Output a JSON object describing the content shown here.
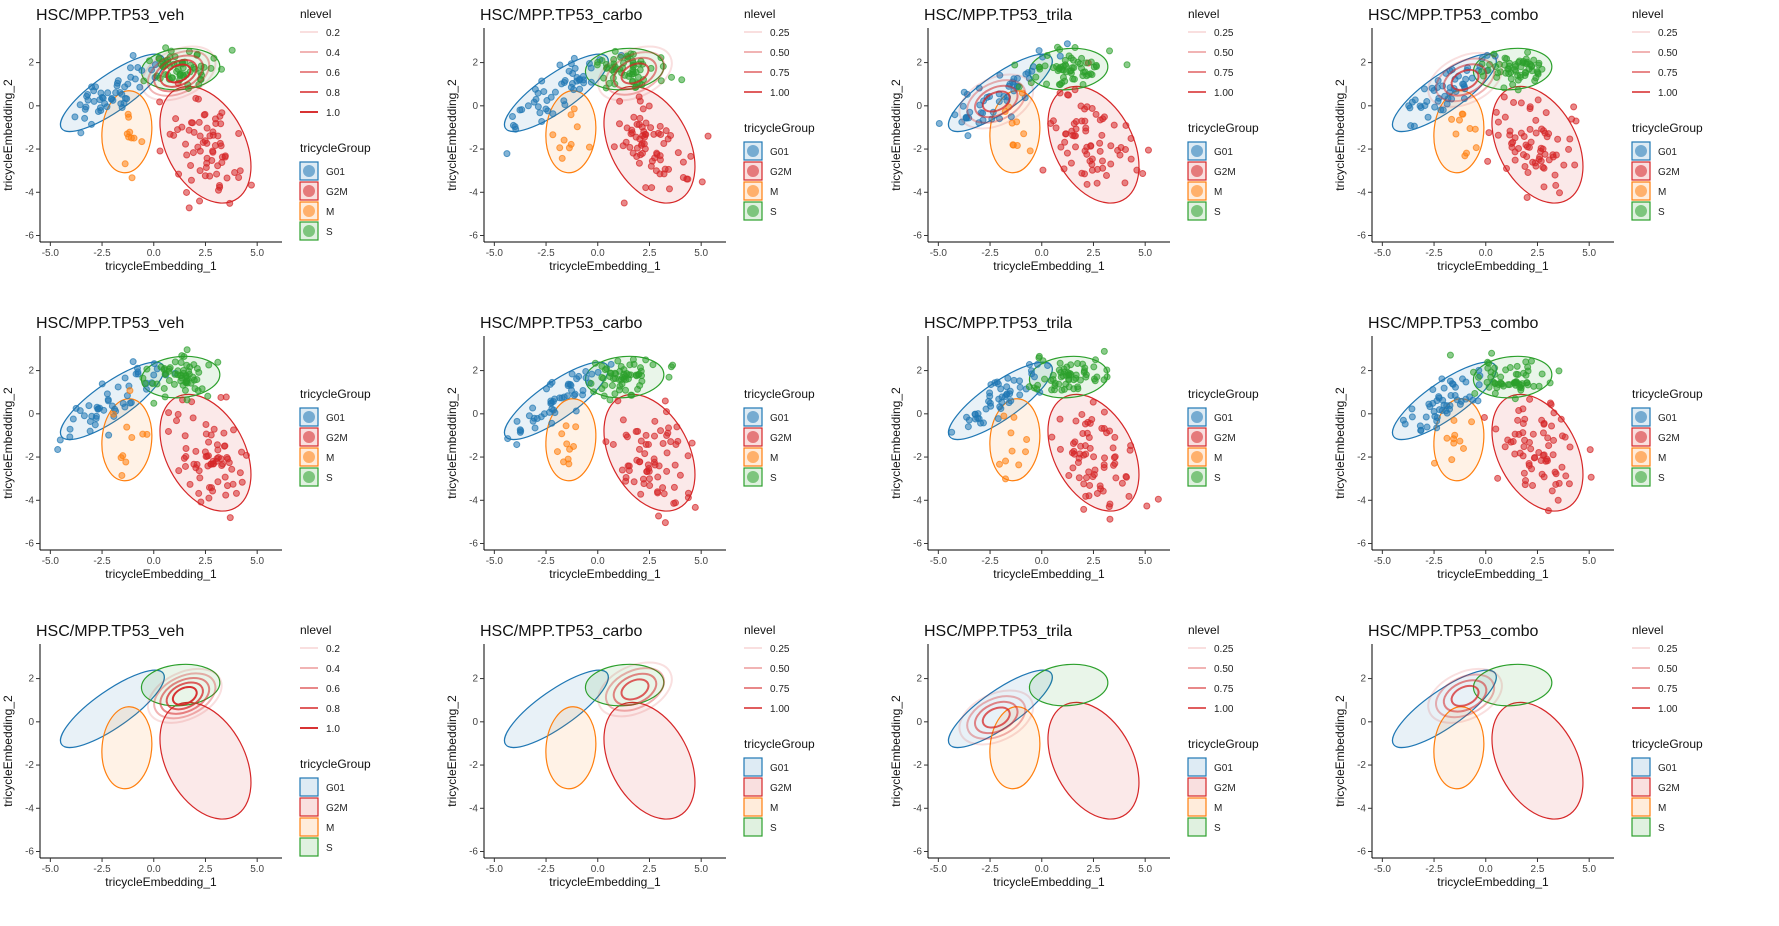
{
  "colors": {
    "G01": "#1f77b4",
    "G2M": "#d62728",
    "M": "#ff7f0e",
    "S": "#2ca02c",
    "density": "#d62728"
  },
  "chart_data": [
    {
      "title": "HSC/MPP.TP53_veh",
      "type": "scatter",
      "xlabel": "tricycleEmbedding_1",
      "ylabel": "tricycleEmbedding_2",
      "xlim": [
        -5.5,
        6.2
      ],
      "ylim": [
        -6.3,
        3.6
      ],
      "xticks": [
        "-5.0",
        "-2.5",
        "0.0",
        "2.5",
        "5.0"
      ],
      "yticks": [
        "-6",
        "-4",
        "-2",
        "0",
        "2"
      ],
      "points": true,
      "ellipses": true,
      "density": true,
      "density_center": [
        1.2,
        1.5
      ],
      "nlevel_labels": [
        "0.2",
        "0.4",
        "0.6",
        "0.8",
        "1.0"
      ],
      "legend_title_group": "tricycleGroup",
      "legend_groups": [
        "G01",
        "G2M",
        "M",
        "S"
      ],
      "legend_title_level": "nlevel"
    },
    {
      "title": "HSC/MPP.TP53_carbo",
      "type": "scatter",
      "xlabel": "tricycleEmbedding_1",
      "ylabel": "tricycleEmbedding_2",
      "xlim": [
        -5.5,
        6.2
      ],
      "ylim": [
        -6.3,
        3.6
      ],
      "xticks": [
        "-5.0",
        "-2.5",
        "0.0",
        "2.5",
        "5.0"
      ],
      "yticks": [
        "-6",
        "-4",
        "-2",
        "0",
        "2"
      ],
      "points": true,
      "ellipses": true,
      "density": true,
      "density_center": [
        1.8,
        1.5
      ],
      "nlevel_labels": [
        "0.25",
        "0.50",
        "0.75",
        "1.00"
      ],
      "legend_title_group": "tricycleGroup",
      "legend_groups": [
        "G01",
        "G2M",
        "M",
        "S"
      ],
      "legend_title_level": "nlevel"
    },
    {
      "title": "HSC/MPP.TP53_trila",
      "type": "scatter",
      "xlabel": "tricycleEmbedding_1",
      "ylabel": "tricycleEmbedding_2",
      "xlim": [
        -5.5,
        6.2
      ],
      "ylim": [
        -6.3,
        3.6
      ],
      "xticks": [
        "-5.0",
        "-2.5",
        "0.0",
        "2.5",
        "5.0"
      ],
      "yticks": [
        "-6",
        "-4",
        "-2",
        "0",
        "2"
      ],
      "points": true,
      "ellipses": true,
      "density": true,
      "density_center": [
        -2.2,
        0.2
      ],
      "nlevel_labels": [
        "0.25",
        "0.50",
        "0.75",
        "1.00"
      ],
      "legend_title_group": "tricycleGroup",
      "legend_groups": [
        "G01",
        "G2M",
        "M",
        "S"
      ],
      "legend_title_level": "nlevel"
    },
    {
      "title": "HSC/MPP.TP53_combo",
      "type": "scatter",
      "xlabel": "tricycleEmbedding_1",
      "ylabel": "tricycleEmbedding_2",
      "xlim": [
        -5.5,
        6.2
      ],
      "ylim": [
        -6.3,
        3.6
      ],
      "xticks": [
        "-5.0",
        "-2.5",
        "0.0",
        "2.5",
        "5.0"
      ],
      "yticks": [
        "-6",
        "-4",
        "-2",
        "0",
        "2"
      ],
      "points": true,
      "ellipses": true,
      "density": true,
      "density_center": [
        -1.0,
        1.2
      ],
      "nlevel_labels": [
        "0.25",
        "0.50",
        "0.75",
        "1.00"
      ],
      "legend_title_group": "tricycleGroup",
      "legend_groups": [
        "G01",
        "G2M",
        "M",
        "S"
      ],
      "legend_title_level": "nlevel"
    },
    {
      "title": "HSC/MPP.TP53_veh",
      "type": "scatter",
      "xlabel": "tricycleEmbedding_1",
      "ylabel": "tricycleEmbedding_2",
      "xlim": [
        -5.5,
        6.2
      ],
      "ylim": [
        -6.3,
        3.6
      ],
      "xticks": [
        "-5.0",
        "-2.5",
        "0.0",
        "2.5",
        "5.0"
      ],
      "yticks": [
        "-6",
        "-4",
        "-2",
        "0",
        "2"
      ],
      "points": true,
      "ellipses": true,
      "density": false,
      "legend_title_group": "tricycleGroup",
      "legend_groups": [
        "G01",
        "G2M",
        "M",
        "S"
      ]
    },
    {
      "title": "HSC/MPP.TP53_carbo",
      "type": "scatter",
      "xlabel": "tricycleEmbedding_1",
      "ylabel": "tricycleEmbedding_2",
      "xlim": [
        -5.5,
        6.2
      ],
      "ylim": [
        -6.3,
        3.6
      ],
      "xticks": [
        "-5.0",
        "-2.5",
        "0.0",
        "2.5",
        "5.0"
      ],
      "yticks": [
        "-6",
        "-4",
        "-2",
        "0",
        "2"
      ],
      "points": true,
      "ellipses": true,
      "density": false,
      "legend_title_group": "tricycleGroup",
      "legend_groups": [
        "G01",
        "G2M",
        "M",
        "S"
      ]
    },
    {
      "title": "HSC/MPP.TP53_trila",
      "type": "scatter",
      "xlabel": "tricycleEmbedding_1",
      "ylabel": "tricycleEmbedding_2",
      "xlim": [
        -5.5,
        6.2
      ],
      "ylim": [
        -6.3,
        3.6
      ],
      "xticks": [
        "-5.0",
        "-2.5",
        "0.0",
        "2.5",
        "5.0"
      ],
      "yticks": [
        "-6",
        "-4",
        "-2",
        "0",
        "2"
      ],
      "points": true,
      "ellipses": true,
      "density": false,
      "legend_title_group": "tricycleGroup",
      "legend_groups": [
        "G01",
        "G2M",
        "M",
        "S"
      ]
    },
    {
      "title": "HSC/MPP.TP53_combo",
      "type": "scatter",
      "xlabel": "tricycleEmbedding_1",
      "ylabel": "tricycleEmbedding_2",
      "xlim": [
        -5.5,
        6.2
      ],
      "ylim": [
        -6.3,
        3.6
      ],
      "xticks": [
        "-5.0",
        "-2.5",
        "0.0",
        "2.5",
        "5.0"
      ],
      "yticks": [
        "-6",
        "-4",
        "-2",
        "0",
        "2"
      ],
      "points": true,
      "ellipses": true,
      "density": false,
      "legend_title_group": "tricycleGroup",
      "legend_groups": [
        "G01",
        "G2M",
        "M",
        "S"
      ]
    },
    {
      "title": "HSC/MPP.TP53_veh",
      "type": "scatter",
      "xlabel": "tricycleEmbedding_1",
      "ylabel": "tricycleEmbedding_2",
      "xlim": [
        -5.5,
        6.2
      ],
      "ylim": [
        -6.3,
        3.6
      ],
      "xticks": [
        "-5.0",
        "-2.5",
        "0.0",
        "2.5",
        "5.0"
      ],
      "yticks": [
        "-6",
        "-4",
        "-2",
        "0",
        "2"
      ],
      "points": false,
      "ellipses": true,
      "density": true,
      "density_center": [
        1.5,
        1.2
      ],
      "nlevel_labels": [
        "0.2",
        "0.4",
        "0.6",
        "0.8",
        "1.0"
      ],
      "legend_title_group": "tricycleGroup",
      "legend_groups": [
        "G01",
        "G2M",
        "M",
        "S"
      ],
      "legend_title_level": "nlevel"
    },
    {
      "title": "HSC/MPP.TP53_carbo",
      "type": "scatter",
      "xlabel": "tricycleEmbedding_1",
      "ylabel": "tricycleEmbedding_2",
      "xlim": [
        -5.5,
        6.2
      ],
      "ylim": [
        -6.3,
        3.6
      ],
      "xticks": [
        "-5.0",
        "-2.5",
        "0.0",
        "2.5",
        "5.0"
      ],
      "yticks": [
        "-6",
        "-4",
        "-2",
        "0",
        "2"
      ],
      "points": false,
      "ellipses": true,
      "density": true,
      "density_center": [
        1.8,
        1.5
      ],
      "nlevel_labels": [
        "0.25",
        "0.50",
        "0.75",
        "1.00"
      ],
      "legend_title_group": "tricycleGroup",
      "legend_groups": [
        "G01",
        "G2M",
        "M",
        "S"
      ],
      "legend_title_level": "nlevel"
    },
    {
      "title": "HSC/MPP.TP53_trila",
      "type": "scatter",
      "xlabel": "tricycleEmbedding_1",
      "ylabel": "tricycleEmbedding_2",
      "xlim": [
        -5.5,
        6.2
      ],
      "ylim": [
        -6.3,
        3.6
      ],
      "xticks": [
        "-5.0",
        "-2.5",
        "0.0",
        "2.5",
        "5.0"
      ],
      "yticks": [
        "-6",
        "-4",
        "-2",
        "0",
        "2"
      ],
      "points": false,
      "ellipses": true,
      "density": true,
      "density_center": [
        -2.2,
        0.2
      ],
      "nlevel_labels": [
        "0.25",
        "0.50",
        "0.75",
        "1.00"
      ],
      "legend_title_group": "tricycleGroup",
      "legend_groups": [
        "G01",
        "G2M",
        "M",
        "S"
      ],
      "legend_title_level": "nlevel"
    },
    {
      "title": "HSC/MPP.TP53_combo",
      "type": "scatter",
      "xlabel": "tricycleEmbedding_1",
      "ylabel": "tricycleEmbedding_2",
      "xlim": [
        -5.5,
        6.2
      ],
      "ylim": [
        -6.3,
        3.6
      ],
      "xticks": [
        "-5.0",
        "-2.5",
        "0.0",
        "2.5",
        "5.0"
      ],
      "yticks": [
        "-6",
        "-4",
        "-2",
        "0",
        "2"
      ],
      "points": false,
      "ellipses": true,
      "density": true,
      "density_center": [
        -1.0,
        1.2
      ],
      "nlevel_labels": [
        "0.25",
        "0.50",
        "0.75",
        "1.00"
      ],
      "legend_title_group": "tricycleGroup",
      "legend_groups": [
        "G01",
        "G2M",
        "M",
        "S"
      ],
      "legend_title_level": "nlevel"
    }
  ]
}
